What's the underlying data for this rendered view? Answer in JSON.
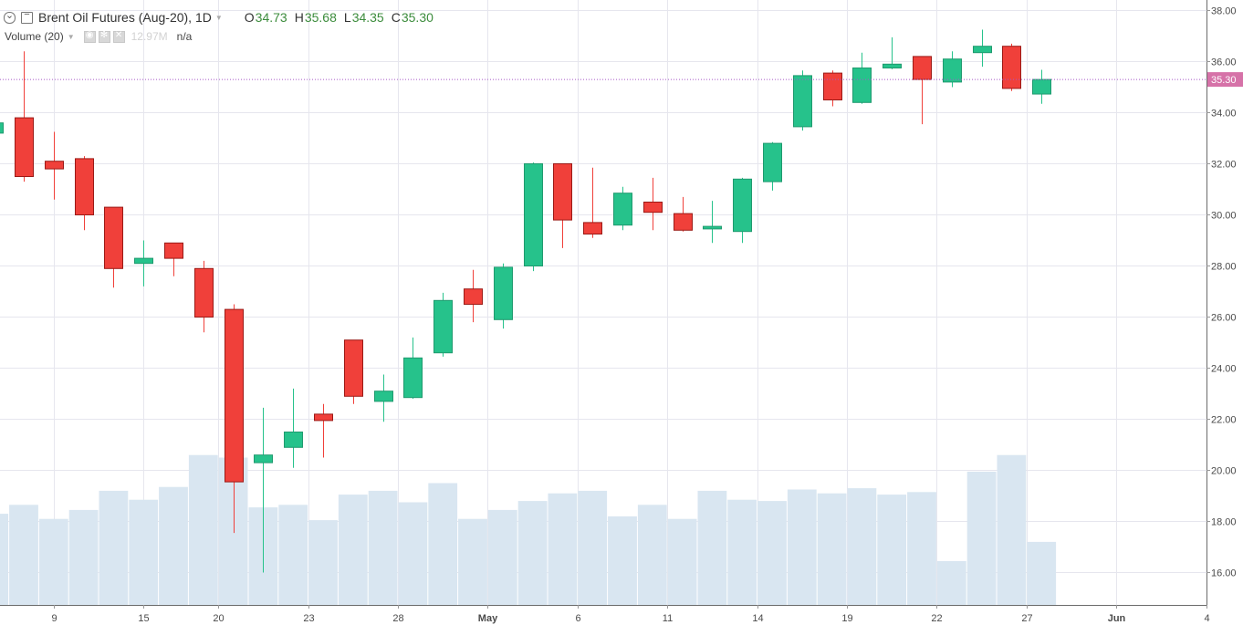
{
  "legend": {
    "title": "Brent Oil Futures (Aug-20), 1D",
    "open_label": "O",
    "open": "34.73",
    "high_label": "H",
    "high": "35.68",
    "low_label": "L",
    "low": "34.35",
    "close_label": "C",
    "close": "35.30",
    "volume_label": "Volume (20)",
    "volume_value": "12.97M",
    "volume_ma": "n/a"
  },
  "colors": {
    "up": "#26c28b",
    "down": "#f0403a",
    "volume": "#d9e6f1",
    "price_line": "#a656c8",
    "price_tag": "#d672a8",
    "grid": "#e6e6ee"
  },
  "chart_data": {
    "type": "candlestick",
    "symbol": "Brent Oil Futures (Aug-20)",
    "interval": "1D",
    "y_ticks": [
      "16.00",
      "18.00",
      "20.00",
      "22.00",
      "24.00",
      "26.00",
      "28.00",
      "30.00",
      "32.00",
      "34.00",
      "36.00",
      "38.00"
    ],
    "ylim": [
      15.0,
      38.4
    ],
    "x_ticks": [
      "9",
      "15",
      "20",
      "23",
      "28",
      "May",
      "6",
      "11",
      "14",
      "19",
      "22",
      "27",
      "Jun",
      "4"
    ],
    "last_price": "35.30",
    "volume_overlay": true,
    "grid": true,
    "candles": [
      {
        "o": 33.2,
        "h": 33.7,
        "l": 32.8,
        "c": 33.6,
        "vol": 18.3
      },
      {
        "o": 33.8,
        "h": 36.4,
        "l": 31.3,
        "c": 31.5,
        "vol": 18.65
      },
      {
        "o": 32.1,
        "h": 33.25,
        "l": 30.6,
        "c": 31.8,
        "vol": 18.1
      },
      {
        "o": 32.2,
        "h": 32.3,
        "l": 29.4,
        "c": 30.0,
        "vol": 18.45
      },
      {
        "o": 30.3,
        "h": 30.3,
        "l": 27.15,
        "c": 27.9,
        "vol": 19.2
      },
      {
        "o": 28.1,
        "h": 29.0,
        "l": 27.2,
        "c": 28.3,
        "vol": 18.85
      },
      {
        "o": 28.9,
        "h": 28.9,
        "l": 27.6,
        "c": 28.3,
        "vol": 19.35
      },
      {
        "o": 27.9,
        "h": 28.2,
        "l": 25.4,
        "c": 26.0,
        "vol": 20.6
      },
      {
        "o": 26.3,
        "h": 26.5,
        "l": 17.55,
        "c": 19.55,
        "vol": 20.5
      },
      {
        "o": 20.3,
        "h": 22.45,
        "l": 16.0,
        "c": 20.6,
        "vol": 18.55
      },
      {
        "o": 20.9,
        "h": 23.2,
        "l": 20.1,
        "c": 21.5,
        "vol": 18.65
      },
      {
        "o": 22.2,
        "h": 22.6,
        "l": 20.5,
        "c": 21.95,
        "vol": 18.05
      },
      {
        "o": 25.1,
        "h": 25.1,
        "l": 22.6,
        "c": 22.9,
        "vol": 19.05
      },
      {
        "o": 22.7,
        "h": 23.75,
        "l": 21.9,
        "c": 23.1,
        "vol": 19.2
      },
      {
        "o": 22.85,
        "h": 25.2,
        "l": 22.8,
        "c": 24.4,
        "vol": 18.75
      },
      {
        "o": 24.6,
        "h": 26.95,
        "l": 24.45,
        "c": 26.65,
        "vol": 19.5
      },
      {
        "o": 27.1,
        "h": 27.85,
        "l": 25.8,
        "c": 26.5,
        "vol": 18.1
      },
      {
        "o": 25.9,
        "h": 28.1,
        "l": 25.55,
        "c": 27.95,
        "vol": 18.45
      },
      {
        "o": 28.0,
        "h": 32.05,
        "l": 27.8,
        "c": 32.0,
        "vol": 18.8
      },
      {
        "o": 32.0,
        "h": 32.0,
        "l": 28.7,
        "c": 29.8,
        "vol": 19.1
      },
      {
        "o": 29.7,
        "h": 31.85,
        "l": 29.1,
        "c": 29.25,
        "vol": 19.2
      },
      {
        "o": 29.6,
        "h": 31.1,
        "l": 29.4,
        "c": 30.85,
        "vol": 18.2
      },
      {
        "o": 30.5,
        "h": 31.45,
        "l": 29.4,
        "c": 30.1,
        "vol": 18.65
      },
      {
        "o": 30.05,
        "h": 30.7,
        "l": 29.35,
        "c": 29.4,
        "vol": 18.1
      },
      {
        "o": 29.45,
        "h": 30.55,
        "l": 28.9,
        "c": 29.55,
        "vol": 19.2
      },
      {
        "o": 29.35,
        "h": 31.45,
        "l": 28.9,
        "c": 31.4,
        "vol": 18.85
      },
      {
        "o": 31.3,
        "h": 32.85,
        "l": 30.95,
        "c": 32.8,
        "vol": 18.8
      },
      {
        "o": 33.45,
        "h": 35.65,
        "l": 33.3,
        "c": 35.45,
        "vol": 19.25
      },
      {
        "o": 35.55,
        "h": 35.65,
        "l": 34.25,
        "c": 34.5,
        "vol": 19.1
      },
      {
        "o": 34.4,
        "h": 36.35,
        "l": 34.35,
        "c": 35.75,
        "vol": 19.3
      },
      {
        "o": 35.75,
        "h": 36.95,
        "l": 35.7,
        "c": 35.9,
        "vol": 19.05
      },
      {
        "o": 36.2,
        "h": 36.2,
        "l": 33.55,
        "c": 35.3,
        "vol": 19.15
      },
      {
        "o": 35.2,
        "h": 36.4,
        "l": 35.0,
        "c": 36.1,
        "vol": 16.45
      },
      {
        "o": 36.35,
        "h": 37.25,
        "l": 35.8,
        "c": 36.6,
        "vol": 19.95
      },
      {
        "o": 36.6,
        "h": 36.7,
        "l": 34.85,
        "c": 34.95,
        "vol": 20.6
      },
      {
        "o": 34.73,
        "h": 35.68,
        "l": 34.35,
        "c": 35.3,
        "vol": 17.2
      }
    ]
  }
}
